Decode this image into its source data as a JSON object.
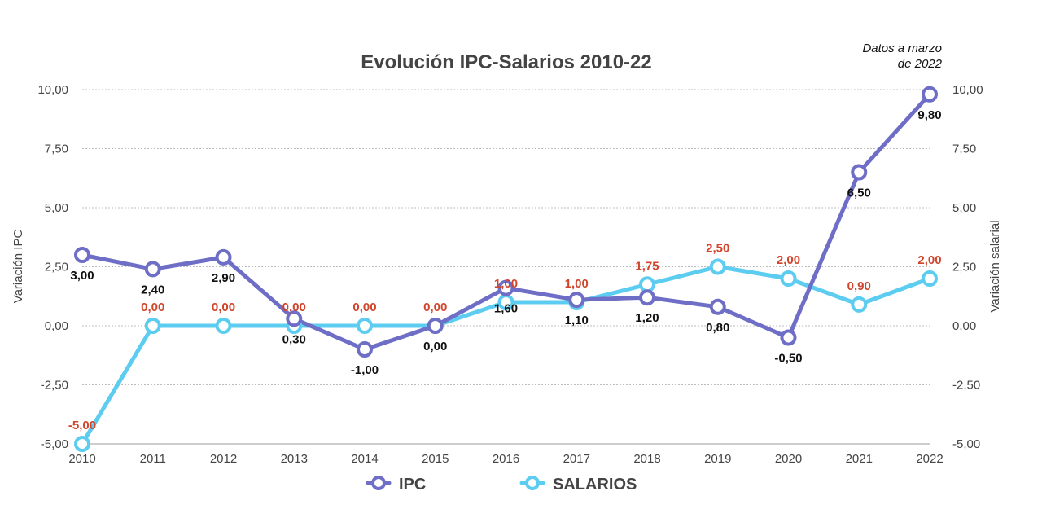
{
  "chart_data": {
    "type": "line",
    "title": "Evolución IPC-Salarios 2010-22",
    "note": [
      "Datos a marzo",
      "de 2022"
    ],
    "ylabel_left": "Variación IPC",
    "ylabel_right": "Variación salarial",
    "ylim": [
      -5,
      10
    ],
    "yticks": [
      "10,00",
      "7,50",
      "5,00",
      "2,50",
      "0,00",
      "-2,50",
      "-5,00"
    ],
    "ytick_values": [
      10,
      7.5,
      5,
      2.5,
      0,
      -2.5,
      -5
    ],
    "categories": [
      "2010",
      "2011",
      "2012",
      "2013",
      "2014",
      "2015",
      "2016",
      "2017",
      "2018",
      "2019",
      "2020",
      "2021",
      "2022"
    ],
    "grid": true,
    "legend_position": "bottom",
    "series": [
      {
        "name": "IPC",
        "color": "#6e6ec6",
        "values": [
          3.0,
          2.4,
          2.9,
          0.3,
          -1.0,
          0.0,
          1.6,
          1.1,
          1.2,
          0.8,
          -0.5,
          6.5,
          9.8
        ],
        "labels": [
          "3,00",
          "2,40",
          "2,90",
          "0,30",
          "-1,00",
          "0,00",
          "1,60",
          "1,10",
          "1,20",
          "0,80",
          "-0,50",
          "6,50",
          "9,80"
        ]
      },
      {
        "name": "SALARIOS",
        "color": "#5ccdf0",
        "label_color": "#d0452b",
        "values": [
          -5.0,
          0.0,
          0.0,
          0.0,
          0.0,
          0.0,
          1.0,
          1.0,
          1.75,
          2.5,
          2.0,
          0.9,
          2.0
        ],
        "labels": [
          "-5,00",
          "0,00",
          "0,00",
          "0,00",
          "0,00",
          "0,00",
          "1,00",
          "1,00",
          "1,75",
          "2,50",
          "2,00",
          "0,90",
          "2,00"
        ]
      }
    ]
  }
}
